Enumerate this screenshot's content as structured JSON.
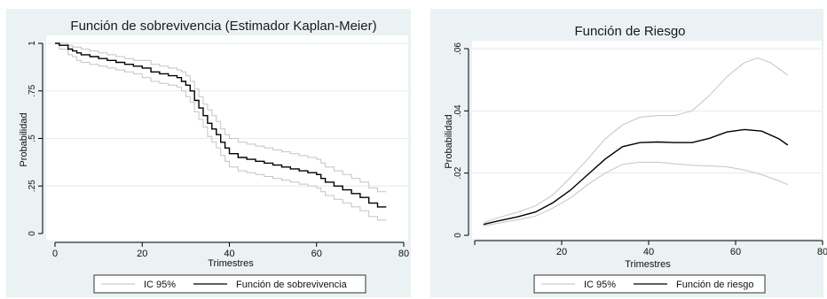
{
  "charts": [
    {
      "id": "km",
      "title": "Función de sobrevivencia (Estimador Kaplan-Meier)",
      "xlabel": "Trimestres",
      "ylabel": "Probabilidad",
      "legend": [
        "IC 95%",
        "Función de sobrevivencia"
      ]
    },
    {
      "id": "hz",
      "title": "Función de Riesgo",
      "xlabel": "Trimestres",
      "ylabel": "Probabilidad",
      "legend": [
        "IC 95%",
        "Función de riesgo"
      ]
    }
  ],
  "chart_data": [
    {
      "type": "line",
      "title": "Función de sobrevivencia (Estimador Kaplan-Meier)",
      "xlabel": "Trimestres",
      "ylabel": "Probabilidad",
      "xlim": [
        0,
        80
      ],
      "ylim": [
        0,
        1
      ],
      "xticks": [
        0,
        20,
        40,
        60,
        80
      ],
      "yticks": [
        0,
        0.25,
        0.5,
        0.75,
        1
      ],
      "ytick_labels": [
        "0",
        ".25",
        ".5",
        ".75",
        "1"
      ],
      "step": true,
      "grid": true,
      "legend_position": "bottom",
      "series": [
        {
          "name": "Función de sobrevivencia",
          "x": [
            0,
            1,
            3,
            4,
            5,
            6,
            8,
            10,
            12,
            14,
            16,
            18,
            20,
            22,
            24,
            26,
            28,
            29,
            30,
            31,
            32,
            33,
            34,
            35,
            36,
            37,
            38,
            39,
            40,
            42,
            44,
            46,
            48,
            50,
            52,
            54,
            56,
            58,
            60,
            61,
            62,
            64,
            66,
            68,
            70,
            72,
            74,
            76
          ],
          "y": [
            1.0,
            0.99,
            0.97,
            0.96,
            0.95,
            0.94,
            0.93,
            0.92,
            0.91,
            0.9,
            0.89,
            0.88,
            0.87,
            0.85,
            0.84,
            0.83,
            0.82,
            0.8,
            0.78,
            0.75,
            0.7,
            0.66,
            0.62,
            0.58,
            0.55,
            0.52,
            0.48,
            0.45,
            0.42,
            0.4,
            0.39,
            0.38,
            0.37,
            0.36,
            0.35,
            0.34,
            0.33,
            0.32,
            0.31,
            0.29,
            0.27,
            0.25,
            0.23,
            0.21,
            0.19,
            0.16,
            0.14,
            0.14
          ]
        },
        {
          "name": "IC 95%",
          "x": [
            0,
            1,
            3,
            4,
            5,
            6,
            8,
            10,
            12,
            14,
            16,
            18,
            20,
            22,
            24,
            26,
            28,
            29,
            30,
            31,
            32,
            33,
            34,
            35,
            36,
            37,
            38,
            39,
            40,
            42,
            44,
            46,
            48,
            50,
            52,
            54,
            56,
            58,
            60,
            61,
            62,
            64,
            66,
            68,
            70,
            72,
            74,
            76
          ],
          "y": [
            1.0,
            1.0,
            0.99,
            0.98,
            0.98,
            0.97,
            0.96,
            0.95,
            0.94,
            0.93,
            0.92,
            0.91,
            0.91,
            0.89,
            0.88,
            0.87,
            0.86,
            0.85,
            0.83,
            0.8,
            0.76,
            0.72,
            0.68,
            0.65,
            0.62,
            0.59,
            0.55,
            0.52,
            0.5,
            0.48,
            0.47,
            0.46,
            0.45,
            0.44,
            0.43,
            0.42,
            0.41,
            0.4,
            0.39,
            0.37,
            0.35,
            0.33,
            0.31,
            0.29,
            0.27,
            0.24,
            0.22,
            0.22
          ]
        },
        {
          "name": "IC 95%",
          "x": [
            0,
            1,
            3,
            4,
            5,
            6,
            8,
            10,
            12,
            14,
            16,
            18,
            20,
            22,
            24,
            26,
            28,
            29,
            30,
            31,
            32,
            33,
            34,
            35,
            36,
            37,
            38,
            39,
            40,
            42,
            44,
            46,
            48,
            50,
            52,
            54,
            56,
            58,
            60,
            61,
            62,
            64,
            66,
            68,
            70,
            72,
            74,
            76
          ],
          "y": [
            1.0,
            0.97,
            0.94,
            0.93,
            0.91,
            0.9,
            0.89,
            0.88,
            0.87,
            0.86,
            0.85,
            0.84,
            0.82,
            0.8,
            0.79,
            0.78,
            0.77,
            0.75,
            0.72,
            0.69,
            0.64,
            0.6,
            0.56,
            0.51,
            0.48,
            0.45,
            0.41,
            0.38,
            0.35,
            0.33,
            0.32,
            0.31,
            0.3,
            0.29,
            0.28,
            0.27,
            0.26,
            0.25,
            0.24,
            0.22,
            0.2,
            0.18,
            0.16,
            0.14,
            0.12,
            0.09,
            0.07,
            0.07
          ]
        }
      ]
    },
    {
      "type": "line",
      "title": "Función de Riesgo",
      "xlabel": "Trimestres",
      "ylabel": "Probabilidad",
      "xlim": [
        0,
        80
      ],
      "ylim": [
        0,
        0.06
      ],
      "xticks": [
        20,
        40,
        60,
        80
      ],
      "yticks": [
        0,
        0.02,
        0.04,
        0.06
      ],
      "ytick_labels": [
        "0",
        ".02",
        ".04",
        ".06"
      ],
      "step": false,
      "grid": true,
      "legend_position": "bottom",
      "series": [
        {
          "name": "Función de riesgo",
          "x": [
            2,
            5,
            10,
            14,
            18,
            22,
            26,
            30,
            34,
            38,
            42,
            46,
            50,
            54,
            58,
            62,
            66,
            70,
            72
          ],
          "y": [
            0.0035,
            0.0045,
            0.006,
            0.0075,
            0.0105,
            0.0145,
            0.0195,
            0.0245,
            0.0285,
            0.0298,
            0.03,
            0.0298,
            0.0298,
            0.0312,
            0.0332,
            0.034,
            0.0335,
            0.031,
            0.029
          ]
        },
        {
          "name": "IC 95%",
          "x": [
            2,
            5,
            10,
            14,
            18,
            22,
            26,
            30,
            34,
            38,
            42,
            46,
            50,
            54,
            58,
            62,
            65,
            68,
            72
          ],
          "y": [
            0.004,
            0.0055,
            0.0075,
            0.0095,
            0.013,
            0.0185,
            0.0245,
            0.031,
            0.0355,
            0.038,
            0.0385,
            0.0385,
            0.04,
            0.045,
            0.051,
            0.0555,
            0.057,
            0.0555,
            0.0515
          ]
        },
        {
          "name": "IC 95%",
          "x": [
            2,
            5,
            10,
            14,
            18,
            22,
            26,
            30,
            34,
            38,
            42,
            46,
            50,
            54,
            58,
            62,
            66,
            70,
            72
          ],
          "y": [
            0.003,
            0.0038,
            0.005,
            0.0062,
            0.0088,
            0.012,
            0.0163,
            0.02,
            0.0228,
            0.0235,
            0.0235,
            0.023,
            0.0225,
            0.0223,
            0.022,
            0.021,
            0.0195,
            0.0175,
            0.0163
          ]
        }
      ]
    }
  ]
}
